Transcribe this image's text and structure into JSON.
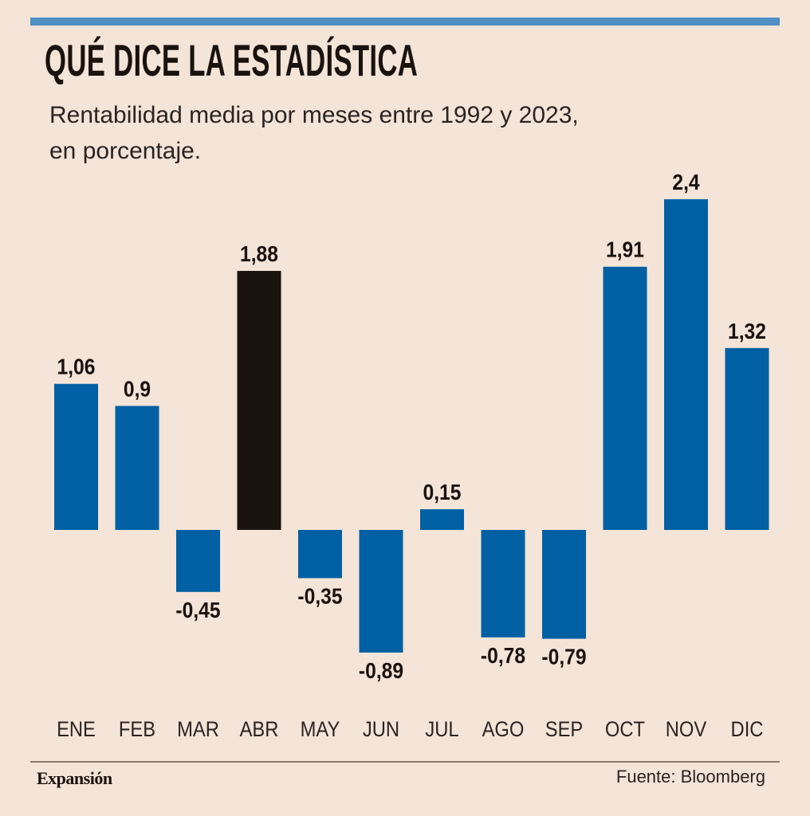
{
  "title": "QUÉ DICE LA ESTADÍSTICA",
  "subtitle": "Rentabilidad media por meses entre 1992 y 2023, en porcentaje.",
  "brand": "Expansión",
  "source": "Fuente: Bloomberg",
  "colors": {
    "bar": "#0060a3",
    "highlight": "#1a120c",
    "accent": "#4f8fc4",
    "background": "#f5e4d8"
  },
  "chart_data": {
    "type": "bar",
    "title": "QUÉ DICE LA ESTADÍSTICA",
    "xlabel": "",
    "ylabel": "",
    "categories": [
      "ENE",
      "FEB",
      "MAR",
      "ABR",
      "MAY",
      "JUN",
      "JUL",
      "AGO",
      "SEP",
      "OCT",
      "NOV",
      "DIC"
    ],
    "values": [
      1.06,
      0.9,
      -0.45,
      1.88,
      -0.35,
      -0.89,
      0.15,
      -0.78,
      -0.79,
      1.91,
      2.4,
      1.32
    ],
    "labels": [
      "1,06",
      "0,9",
      "-0,45",
      "1,88",
      "-0,35",
      "-0,89",
      "0,15",
      "-0,78",
      "-0,79",
      "1,91",
      "2,4",
      "1,32"
    ],
    "highlight": "ABR",
    "ylim": [
      -0.89,
      2.4
    ],
    "grid": false
  }
}
